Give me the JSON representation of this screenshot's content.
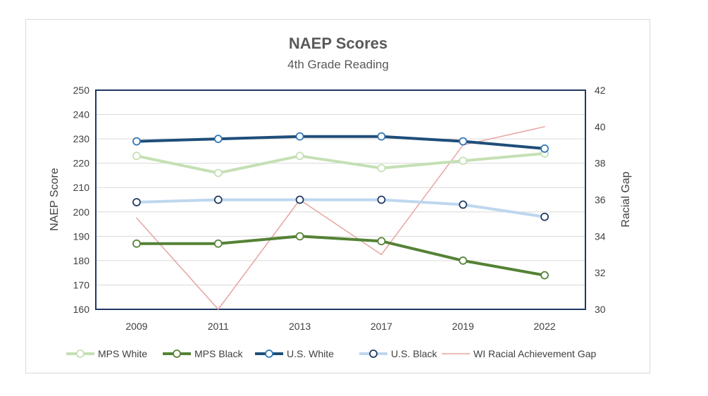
{
  "chart_data": {
    "type": "line",
    "title": "NAEP Scores",
    "subtitle": "4th Grade Reading",
    "categories": [
      "2009",
      "2011",
      "2013",
      "2017",
      "2019",
      "2022"
    ],
    "ylabel": "NAEP Score",
    "y2label": "Racial Gap",
    "ylim": [
      160,
      250
    ],
    "yticks": [
      160,
      170,
      180,
      190,
      200,
      210,
      220,
      230,
      240,
      250
    ],
    "y2lim": [
      30,
      42
    ],
    "y2ticks": [
      30,
      32,
      34,
      36,
      38,
      40,
      42
    ],
    "grid": true,
    "legend_position": "bottom",
    "series": [
      {
        "name": "MPS White",
        "axis": "left",
        "color": "#c5e0b4",
        "markerStroke": "#c5e0b4",
        "width": 4,
        "marker": true,
        "values": [
          223,
          216,
          223,
          218,
          221,
          224
        ]
      },
      {
        "name": "MPS Black",
        "axis": "left",
        "color": "#548235",
        "markerStroke": "#548235",
        "width": 4,
        "marker": true,
        "values": [
          187,
          187,
          190,
          188,
          180,
          174
        ]
      },
      {
        "name": "U.S. White",
        "axis": "left",
        "color": "#1f4e79",
        "markerStroke": "#2e75b6",
        "width": 4,
        "marker": true,
        "values": [
          229,
          230,
          231,
          231,
          229,
          226
        ]
      },
      {
        "name": "U.S. Black",
        "axis": "left",
        "color": "#bdd7ee",
        "markerStroke": "#1f3864",
        "width": 4,
        "marker": true,
        "values": [
          204,
          205,
          205,
          205,
          203,
          198
        ]
      },
      {
        "name": "WI Racial Achievement Gap",
        "axis": "right",
        "color": "#e6a5a1",
        "markerStroke": "#e6a5a1",
        "width": 1.5,
        "marker": false,
        "values": [
          35,
          30,
          36,
          33,
          39,
          40
        ]
      }
    ]
  }
}
